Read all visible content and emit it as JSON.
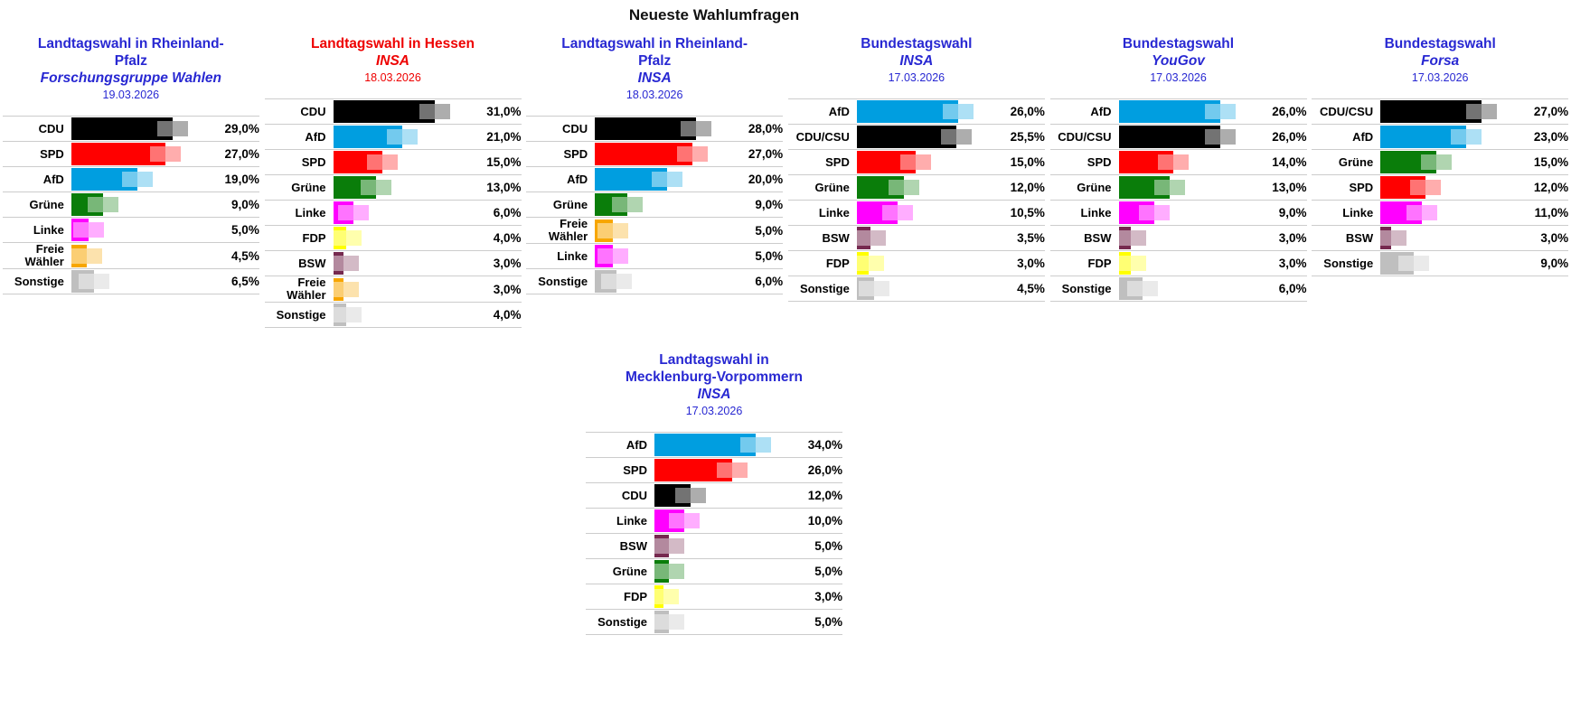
{
  "page_title": "Neueste Wahlumfragen",
  "theme": {
    "background": "#ffffff",
    "text": "#000000",
    "separator": "#cccccc",
    "title_blue": "#2828d2",
    "title_red": "#ee0000"
  },
  "party_colors": {
    "CDU": "#000000",
    "CDU/CSU": "#000000",
    "SPD": "#ff0000",
    "AfD": "#009ee0",
    "Grüne": "#0a7d0a",
    "Linke": "#ff00ff",
    "Freie Wähler": "#f7a600",
    "FDP": "#ffff00",
    "BSW": "#76294f",
    "Sonstige": "#bfbfbf"
  },
  "chart_data": [
    {
      "type": "bar",
      "orientation": "horizontal",
      "row": 1,
      "title_lines": [
        "Landtagswahl in Rheinland-",
        "Pfalz"
      ],
      "institute": "Forschungsgruppe Wahlen",
      "date": "19.03.2026",
      "title_color": "#2828d2",
      "categories": [
        "CDU",
        "SPD",
        "AfD",
        "Grüne",
        "Linke",
        "Freie Wähler",
        "Sonstige"
      ],
      "values": [
        29.0,
        27.0,
        19.0,
        9.0,
        5.0,
        4.5,
        6.5
      ],
      "display_values": [
        "29,0%",
        "27,0%",
        "19,0%",
        "9,0%",
        "5,0%",
        "4,5%",
        "6,5%"
      ]
    },
    {
      "type": "bar",
      "orientation": "horizontal",
      "row": 1,
      "title_lines": [
        "Landtagswahl in Hessen"
      ],
      "institute": "INSA",
      "date": "18.03.2026",
      "title_color": "#ee0000",
      "categories": [
        "CDU",
        "AfD",
        "SPD",
        "Grüne",
        "Linke",
        "FDP",
        "BSW",
        "Freie Wähler",
        "Sonstige"
      ],
      "values": [
        31.0,
        21.0,
        15.0,
        13.0,
        6.0,
        4.0,
        3.0,
        3.0,
        4.0
      ],
      "display_values": [
        "31,0%",
        "21,0%",
        "15,0%",
        "13,0%",
        "6,0%",
        "4,0%",
        "3,0%",
        "3,0%",
        "4,0%"
      ]
    },
    {
      "type": "bar",
      "orientation": "horizontal",
      "row": 1,
      "title_lines": [
        "Landtagswahl in Rheinland-",
        "Pfalz"
      ],
      "institute": "INSA",
      "date": "18.03.2026",
      "title_color": "#2828d2",
      "categories": [
        "CDU",
        "SPD",
        "AfD",
        "Grüne",
        "Freie Wähler",
        "Linke",
        "Sonstige"
      ],
      "values": [
        28.0,
        27.0,
        20.0,
        9.0,
        5.0,
        5.0,
        6.0
      ],
      "display_values": [
        "28,0%",
        "27,0%",
        "20,0%",
        "9,0%",
        "5,0%",
        "5,0%",
        "6,0%"
      ]
    },
    {
      "type": "bar",
      "orientation": "horizontal",
      "row": 1,
      "title_lines": [
        "Bundestagswahl"
      ],
      "institute": "INSA",
      "date": "17.03.2026",
      "title_color": "#2828d2",
      "categories": [
        "AfD",
        "CDU/CSU",
        "SPD",
        "Grüne",
        "Linke",
        "BSW",
        "FDP",
        "Sonstige"
      ],
      "values": [
        26.0,
        25.5,
        15.0,
        12.0,
        10.5,
        3.5,
        3.0,
        4.5
      ],
      "display_values": [
        "26,0%",
        "25,5%",
        "15,0%",
        "12,0%",
        "10,5%",
        "3,5%",
        "3,0%",
        "4,5%"
      ]
    },
    {
      "type": "bar",
      "orientation": "horizontal",
      "row": 1,
      "title_lines": [
        "Bundestagswahl"
      ],
      "institute": "YouGov",
      "date": "17.03.2026",
      "title_color": "#2828d2",
      "categories": [
        "AfD",
        "CDU/CSU",
        "SPD",
        "Grüne",
        "Linke",
        "BSW",
        "FDP",
        "Sonstige"
      ],
      "values": [
        26.0,
        26.0,
        14.0,
        13.0,
        9.0,
        3.0,
        3.0,
        6.0
      ],
      "display_values": [
        "26,0%",
        "26,0%",
        "14,0%",
        "13,0%",
        "9,0%",
        "3,0%",
        "3,0%",
        "6,0%"
      ]
    },
    {
      "type": "bar",
      "orientation": "horizontal",
      "row": 1,
      "title_lines": [
        "Bundestagswahl"
      ],
      "institute": "Forsa",
      "date": "17.03.2026",
      "title_color": "#2828d2",
      "categories": [
        "CDU/CSU",
        "AfD",
        "Grüne",
        "SPD",
        "Linke",
        "BSW",
        "Sonstige"
      ],
      "values": [
        27.0,
        23.0,
        15.0,
        12.0,
        11.0,
        3.0,
        9.0
      ],
      "display_values": [
        "27,0%",
        "23,0%",
        "15,0%",
        "12,0%",
        "11,0%",
        "3,0%",
        "9,0%"
      ]
    },
    {
      "type": "bar",
      "orientation": "horizontal",
      "row": 2,
      "title_lines": [
        "Landtagswahl in",
        "Mecklenburg-Vorpommern"
      ],
      "institute": "INSA",
      "date": "17.03.2026",
      "title_color": "#2828d2",
      "categories": [
        "AfD",
        "SPD",
        "CDU",
        "Linke",
        "BSW",
        "Grüne",
        "FDP",
        "Sonstige"
      ],
      "values": [
        34.0,
        26.0,
        12.0,
        10.0,
        5.0,
        5.0,
        3.0,
        5.0
      ],
      "display_values": [
        "34,0%",
        "26,0%",
        "12,0%",
        "10,0%",
        "5,0%",
        "5,0%",
        "3,0%",
        "5,0%"
      ]
    }
  ]
}
